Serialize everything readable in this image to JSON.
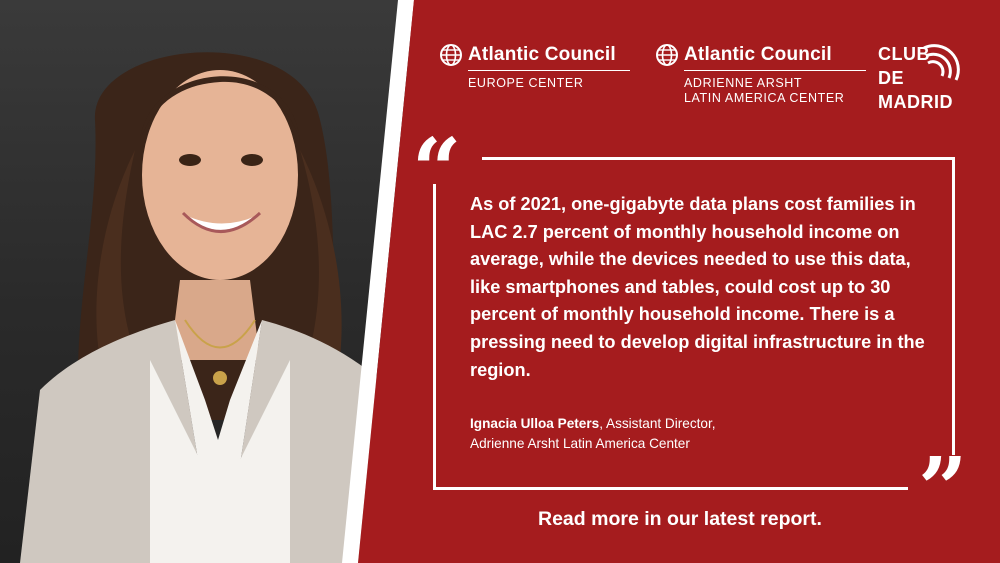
{
  "logos": {
    "europe": {
      "brand": "Atlantic Council",
      "sub": "EUROPE CENTER"
    },
    "arsht": {
      "brand": "Atlantic Council",
      "sub_line1": "ADRIENNE ARSHT",
      "sub_line2": "LATIN AMERICA CENTER"
    },
    "club": {
      "line1": "CLUB",
      "line2": "DE",
      "line3": "MADRID"
    }
  },
  "quote": {
    "text": "As of 2021, one-gigabyte data plans cost families in LAC 2.7 percent of monthly household income on average, while the devices needed to use this data, like smartphones and tables, could cost up to 30 percent of monthly household income. There is a pressing need to develop digital infrastructure in the region.",
    "name": "Ignacia Ulloa Peters",
    "role_suffix": ", Assistant Director,",
    "role_line2": "Adrienne Arsht Latin America Center",
    "open_mark": "“",
    "close_mark": "”"
  },
  "cta": "Read more in our latest report.",
  "colors": {
    "background": "#a51c1e",
    "text": "#ffffff"
  }
}
